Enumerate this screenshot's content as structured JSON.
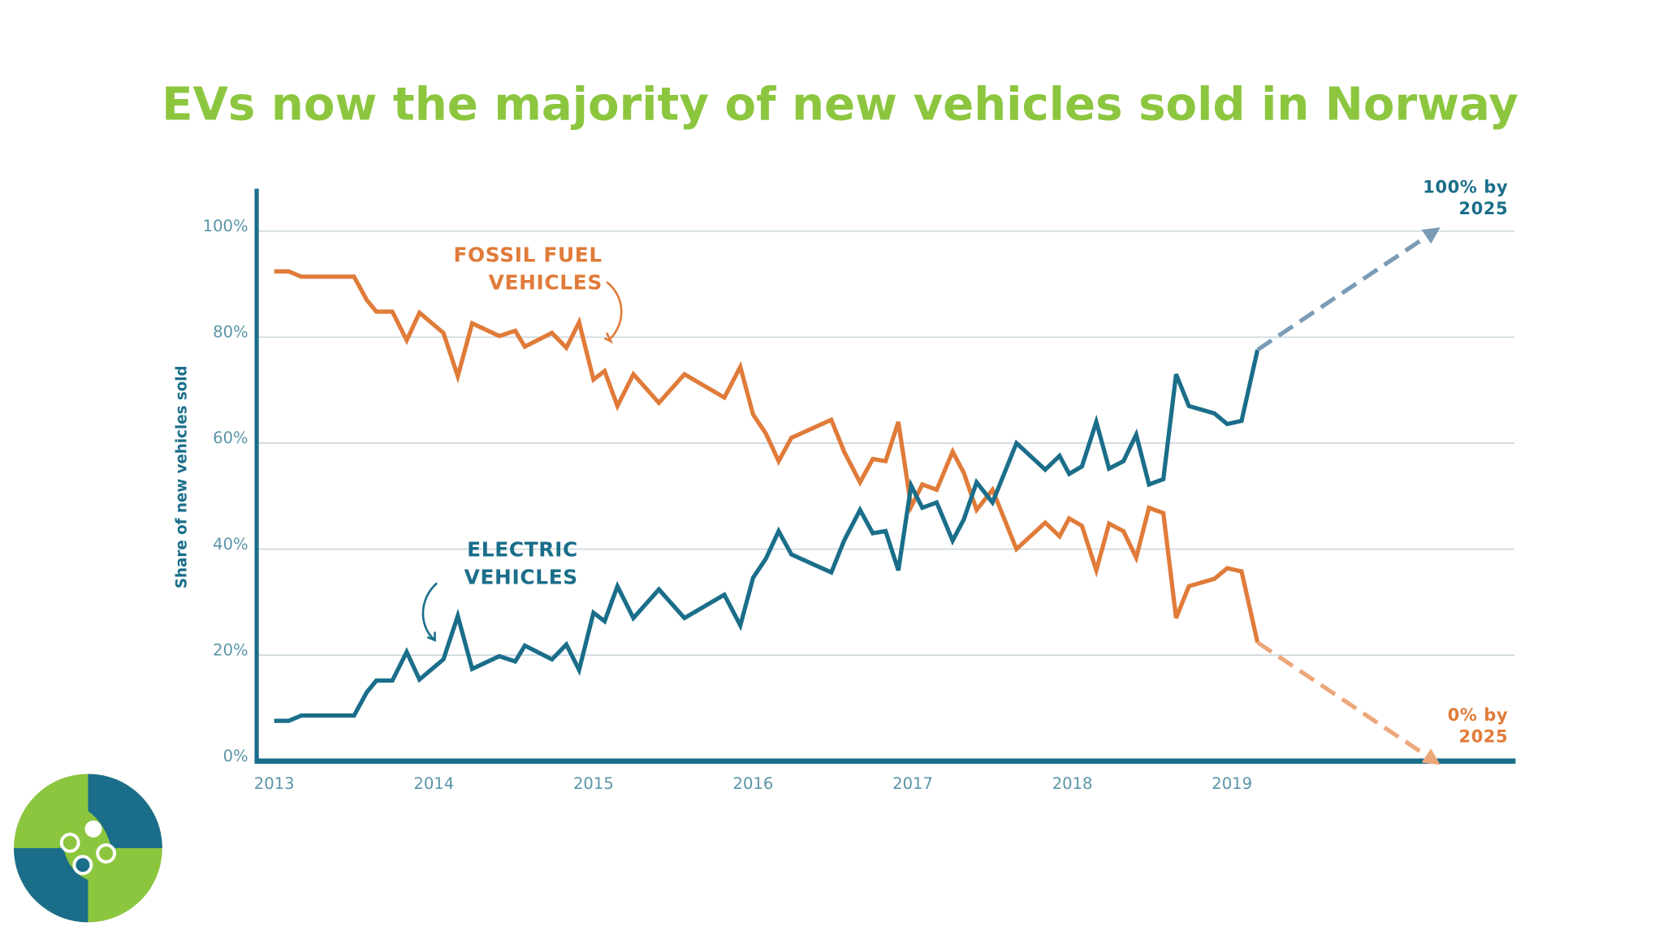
{
  "chart_data": {
    "type": "line",
    "title": "EVs now the majority of new vehicles sold in Norway",
    "y_label": "Share of new vehicles sold",
    "xlim": [
      2012.89,
      2020.77
    ],
    "xticks": [
      2013,
      2014,
      2015,
      2016,
      2017,
      2018,
      2019
    ],
    "ylim": [
      0,
      108
    ],
    "yticks": [
      {
        "value": 0,
        "label": "0%"
      },
      {
        "value": 20,
        "label": "20%"
      },
      {
        "value": 40,
        "label": "40%"
      },
      {
        "value": 60,
        "label": "60%"
      },
      {
        "value": 80,
        "label": "80%"
      },
      {
        "value": 100,
        "label": "100%"
      }
    ],
    "grid": true,
    "x": [
      2013.0,
      2013.09,
      2013.17,
      2013.5,
      2013.58,
      2013.64,
      2013.74,
      2013.83,
      2013.91,
      2014.06,
      2014.15,
      2014.24,
      2014.41,
      2014.51,
      2014.57,
      2014.74,
      2014.83,
      2014.91,
      2015.0,
      2015.07,
      2015.15,
      2015.25,
      2015.41,
      2015.57,
      2015.82,
      2015.92,
      2016.0,
      2016.08,
      2016.16,
      2016.24,
      2016.49,
      2016.57,
      2016.67,
      2016.75,
      2016.83,
      2016.91,
      2016.99,
      2017.06,
      2017.15,
      2017.25,
      2017.32,
      2017.4,
      2017.5,
      2017.65,
      2017.83,
      2017.92,
      2017.98,
      2018.06,
      2018.15,
      2018.23,
      2018.32,
      2018.4,
      2018.48,
      2018.57,
      2018.65,
      2018.73,
      2018.89,
      2018.97,
      2019.06,
      2019.16
    ],
    "series": [
      {
        "name": "FOSSIL FUEL VEHICLES",
        "color": "#e07b39",
        "values": [
          92.4,
          92.4,
          91.4,
          91.4,
          87.0,
          84.8,
          84.8,
          79.4,
          84.6,
          80.8,
          72.6,
          82.6,
          80.2,
          81.2,
          78.2,
          80.8,
          78.0,
          82.8,
          72.0,
          73.6,
          67.0,
          73.0,
          67.6,
          73.0,
          68.6,
          74.4,
          65.4,
          61.8,
          56.6,
          61.0,
          64.4,
          58.4,
          52.6,
          57.0,
          56.6,
          64.0,
          48.0,
          52.2,
          51.2,
          58.4,
          54.4,
          47.4,
          51.2,
          40.0,
          45.0,
          42.4,
          45.8,
          44.4,
          36.0,
          44.8,
          43.4,
          38.4,
          47.8,
          46.8,
          27.0,
          33.0,
          34.4,
          36.4,
          35.8,
          22.4
        ]
      },
      {
        "name": "ELECTRIC VEHICLES",
        "color": "#1a6e8a",
        "values": [
          7.6,
          7.6,
          8.6,
          8.6,
          13.0,
          15.2,
          15.2,
          20.6,
          15.4,
          19.2,
          27.4,
          17.4,
          19.8,
          18.8,
          21.8,
          19.2,
          22.0,
          17.2,
          28.0,
          26.4,
          33.0,
          27.0,
          32.4,
          27.0,
          31.4,
          25.6,
          34.6,
          38.2,
          43.4,
          39.0,
          35.6,
          41.6,
          47.4,
          43.0,
          43.4,
          36.0,
          52.0,
          47.8,
          48.8,
          41.6,
          45.6,
          52.6,
          48.8,
          60.0,
          55.0,
          57.6,
          54.2,
          55.6,
          64.0,
          55.2,
          56.6,
          61.6,
          52.2,
          53.2,
          73.0,
          67.0,
          65.6,
          63.6,
          64.2,
          77.6
        ]
      }
    ],
    "projections": [
      {
        "label": "100% by 2025",
        "color": "#7a9bb5",
        "x": [
          2019.16,
          2020.27
        ],
        "values": [
          77.6,
          100
        ]
      },
      {
        "label": "0% by 2025",
        "color": "#eda77a",
        "x": [
          2019.16,
          2020.27
        ],
        "values": [
          22.4,
          0
        ]
      }
    ]
  }
}
